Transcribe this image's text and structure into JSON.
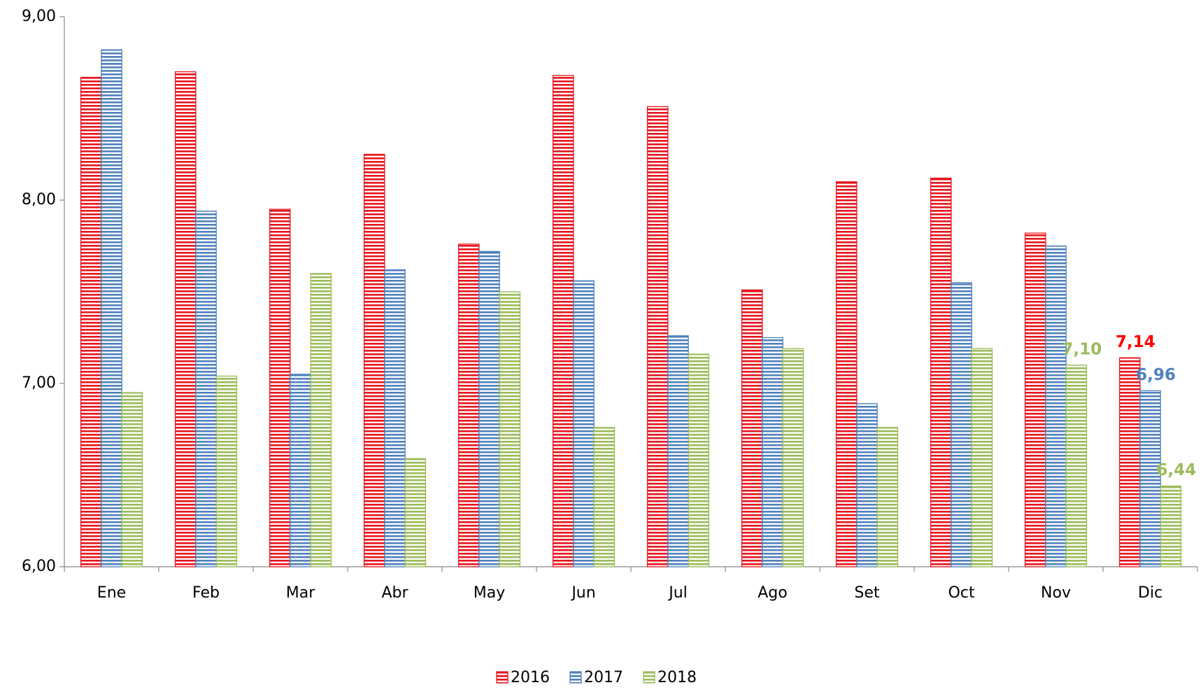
{
  "chart_data": {
    "type": "bar",
    "categories": [
      "Ene",
      "Feb",
      "Mar",
      "Abr",
      "May",
      "Jun",
      "Jul",
      "Ago",
      "Set",
      "Oct",
      "Nov",
      "Dic"
    ],
    "series": [
      {
        "name": "2016",
        "color": "#e8141c",
        "label_color": "#ff0000",
        "values": [
          8.67,
          8.7,
          7.95,
          8.25,
          7.76,
          8.68,
          8.51,
          7.51,
          8.1,
          8.12,
          7.82,
          7.14
        ],
        "value_labels": [
          null,
          null,
          null,
          null,
          null,
          null,
          null,
          null,
          null,
          null,
          null,
          "7,14"
        ]
      },
      {
        "name": "2017",
        "color": "#4f81bd",
        "label_color": "#4f81bd",
        "values": [
          8.82,
          7.94,
          7.05,
          7.62,
          7.72,
          7.56,
          7.26,
          7.25,
          6.89,
          7.55,
          7.75,
          6.96
        ],
        "value_labels": [
          null,
          null,
          null,
          null,
          null,
          null,
          null,
          null,
          null,
          null,
          null,
          "6,96"
        ]
      },
      {
        "name": "2018",
        "color": "#9bbb59",
        "label_color": "#9bbb59",
        "values": [
          6.95,
          7.04,
          7.6,
          6.59,
          7.5,
          6.76,
          7.16,
          7.19,
          6.76,
          7.19,
          7.1,
          6.44
        ],
        "value_labels": [
          null,
          null,
          null,
          null,
          null,
          null,
          null,
          null,
          null,
          null,
          "7,10",
          "6,44"
        ]
      }
    ],
    "ylim": [
      6,
      9
    ],
    "yticks": [
      {
        "value": 6,
        "label": "6,00"
      },
      {
        "value": 7,
        "label": "7,00"
      },
      {
        "value": 8,
        "label": "8,00"
      },
      {
        "value": 9,
        "label": "9,00"
      }
    ],
    "legend": "bottom"
  }
}
